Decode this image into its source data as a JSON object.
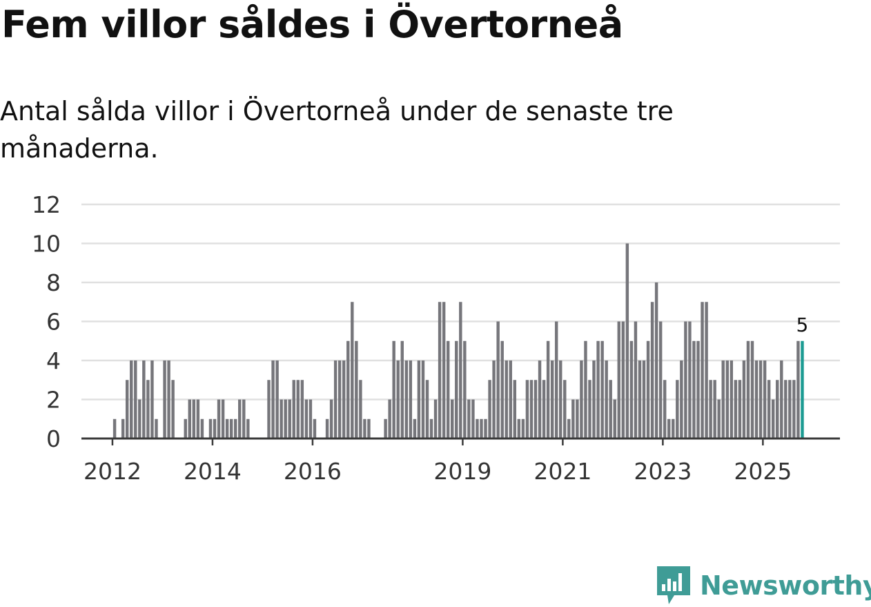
{
  "header": {
    "title": "Fem villor såldes i Övertorneå",
    "subtitle": "Antal sålda villor i Övertorneå under de senaste tre månaderna."
  },
  "brand": {
    "name": "Newsworthy",
    "color": "#3f9c96"
  },
  "colors": {
    "bar": "#76767b",
    "highlight": "#1c9b93",
    "grid": "#e0e0e0",
    "axis": "#3a3a3a"
  },
  "chart_data": {
    "type": "bar",
    "title": "Fem villor såldes i Övertorneå",
    "subtitle": "Antal sålda villor i Övertorneå under de senaste tre månaderna.",
    "xlabel": "",
    "ylabel": "",
    "ylim": [
      0,
      12
    ],
    "yticks": [
      0,
      2,
      4,
      6,
      8,
      10,
      12
    ],
    "grid": true,
    "x_range": [
      2011.38,
      2026.54
    ],
    "xticks": [
      {
        "label": "2012",
        "pos": 2012.0
      },
      {
        "label": "2014",
        "pos": 2014.0
      },
      {
        "label": "2016",
        "pos": 2016.0
      },
      {
        "label": "2019",
        "pos": 2019.0
      },
      {
        "label": "2021",
        "pos": 2021.0
      },
      {
        "label": "2023",
        "pos": 2023.0
      },
      {
        "label": "2025",
        "pos": 2025.0
      }
    ],
    "start": 2011.96,
    "step": 0.0833,
    "values": [
      0,
      1,
      0,
      1,
      3,
      4,
      4,
      2,
      4,
      3,
      4,
      1,
      0,
      4,
      4,
      3,
      0,
      0,
      1,
      2,
      2,
      2,
      1,
      0,
      1,
      1,
      2,
      2,
      1,
      1,
      1,
      2,
      2,
      1,
      0,
      0,
      0,
      0,
      3,
      4,
      4,
      2,
      2,
      2,
      3,
      3,
      3,
      2,
      2,
      1,
      0,
      0,
      1,
      2,
      4,
      4,
      4,
      5,
      7,
      5,
      3,
      1,
      1,
      0,
      0,
      0,
      1,
      2,
      5,
      4,
      5,
      4,
      4,
      1,
      4,
      4,
      3,
      1,
      2,
      7,
      7,
      5,
      2,
      5,
      7,
      5,
      2,
      2,
      1,
      1,
      1,
      3,
      4,
      6,
      5,
      4,
      4,
      3,
      1,
      1,
      3,
      3,
      3,
      4,
      3,
      5,
      4,
      6,
      4,
      3,
      1,
      2,
      2,
      4,
      5,
      3,
      4,
      5,
      5,
      4,
      3,
      2,
      6,
      6,
      10,
      5,
      6,
      4,
      4,
      5,
      7,
      8,
      6,
      3,
      1,
      1,
      3,
      4,
      6,
      6,
      5,
      5,
      7,
      7,
      3,
      3,
      2,
      4,
      4,
      4,
      3,
      3,
      4,
      5,
      5,
      4,
      4,
      4,
      3,
      2,
      3,
      4,
      3,
      3,
      3,
      5,
      5
    ],
    "highlight_last": true,
    "annotation": "5"
  }
}
